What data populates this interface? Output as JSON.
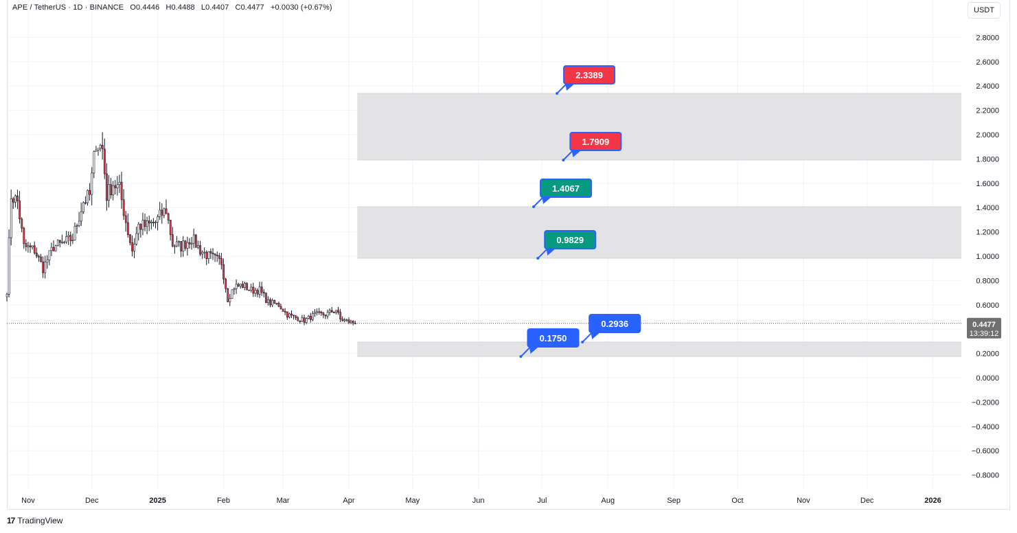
{
  "header": {
    "symbol": "APE / TetherUS · 1D · BINANCE",
    "open": "O0.4446",
    "high": "H0.4488",
    "low": "L0.4407",
    "close": "C0.4477",
    "change": "+0.0030 (+0.67%)"
  },
  "currency_button": "USDT",
  "last_price": {
    "value": "0.4477",
    "countdown": "13:39:12"
  },
  "branding": {
    "logo": "17",
    "name": "TradingView"
  },
  "colors": {
    "up": "#089981",
    "down": "#f23645",
    "blue": "#2962ff",
    "zone": "#e1e2e5",
    "price_tag": "#707070"
  },
  "chart_data": {
    "type": "candlestick",
    "y_ticks": [
      "2.8000",
      "2.6000",
      "2.4000",
      "2.2000",
      "2.0000",
      "1.8000",
      "1.6000",
      "1.4000",
      "1.2000",
      "1.0000",
      "0.8000",
      "0.6000",
      "0.4000",
      "0.2000",
      "0.0000",
      "−0.2000",
      "−0.4000",
      "−0.6000",
      "−0.8000"
    ],
    "x_ticks": [
      "Nov",
      "Dec",
      "2025",
      "Feb",
      "Mar",
      "Apr",
      "May",
      "Jun",
      "Jul",
      "Aug",
      "Sep",
      "Oct",
      "Nov",
      "Dec",
      "2026"
    ],
    "ylim": [
      -0.9,
      3.0
    ],
    "price_path": [
      [
        "2024-10-22",
        0.72
      ],
      [
        "2024-10-24",
        1.5
      ],
      [
        "2024-10-27",
        1.45
      ],
      [
        "2024-10-30",
        1.08
      ],
      [
        "2024-11-04",
        1.05
      ],
      [
        "2024-11-08",
        0.9
      ],
      [
        "2024-11-13",
        1.08
      ],
      [
        "2024-11-17",
        1.1
      ],
      [
        "2024-11-22",
        1.15
      ],
      [
        "2024-11-27",
        1.45
      ],
      [
        "2024-11-30",
        1.5
      ],
      [
        "2024-12-03",
        1.95
      ],
      [
        "2024-12-06",
        1.88
      ],
      [
        "2024-12-08",
        1.5
      ],
      [
        "2024-12-11",
        1.6
      ],
      [
        "2024-12-14",
        1.55
      ],
      [
        "2024-12-18",
        1.2
      ],
      [
        "2024-12-20",
        1.05
      ],
      [
        "2024-12-23",
        1.25
      ],
      [
        "2024-12-27",
        1.25
      ],
      [
        "2024-12-31",
        1.28
      ],
      [
        "2025-01-03",
        1.35
      ],
      [
        "2025-01-05",
        1.38
      ],
      [
        "2025-01-08",
        1.1
      ],
      [
        "2025-01-12",
        1.08
      ],
      [
        "2025-01-17",
        1.15
      ],
      [
        "2025-01-21",
        1.05
      ],
      [
        "2025-01-25",
        1.0
      ],
      [
        "2025-01-31",
        0.95
      ],
      [
        "2025-02-03",
        0.65
      ],
      [
        "2025-02-06",
        0.75
      ],
      [
        "2025-02-10",
        0.76
      ],
      [
        "2025-02-14",
        0.72
      ],
      [
        "2025-02-18",
        0.72
      ],
      [
        "2025-02-22",
        0.62
      ],
      [
        "2025-02-27",
        0.6
      ],
      [
        "2025-03-03",
        0.52
      ],
      [
        "2025-03-06",
        0.5
      ],
      [
        "2025-03-11",
        0.47
      ],
      [
        "2025-03-16",
        0.52
      ],
      [
        "2025-03-21",
        0.52
      ],
      [
        "2025-03-26",
        0.56
      ],
      [
        "2025-03-28",
        0.48
      ],
      [
        "2025-04-04",
        0.4477
      ]
    ],
    "last_close": 0.4477,
    "zones": [
      {
        "from": 1.7909,
        "to": 2.3389,
        "start": "2025-04-05"
      },
      {
        "from": 0.9829,
        "to": 1.4067,
        "start": "2025-04-05"
      },
      {
        "from": 0.175,
        "to": 0.2936,
        "start": "2025-04-05"
      }
    ],
    "price_labels": [
      {
        "text": "2.3389",
        "value": 2.3389,
        "date": "2025-07-08",
        "color": "red"
      },
      {
        "text": "1.7909",
        "value": 1.7909,
        "date": "2025-07-11",
        "color": "red"
      },
      {
        "text": "1.4067",
        "value": 1.4067,
        "date": "2025-06-27",
        "color": "green"
      },
      {
        "text": "0.9829",
        "value": 0.9829,
        "date": "2025-06-29",
        "color": "green"
      },
      {
        "text": "0.2936",
        "value": 0.2936,
        "date": "2025-07-20",
        "color": "blue"
      },
      {
        "text": "0.1750",
        "value": 0.175,
        "date": "2025-06-21",
        "color": "blue"
      }
    ]
  }
}
